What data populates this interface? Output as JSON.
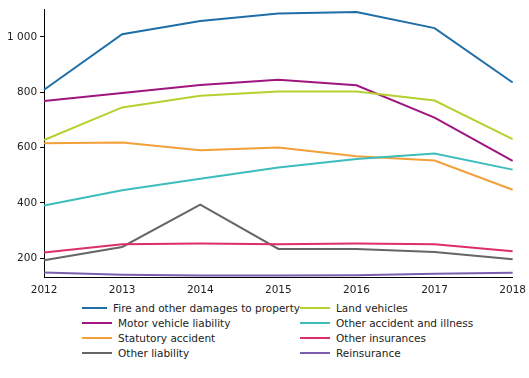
{
  "chart_data": {
    "type": "line",
    "categories": [
      "2012",
      "2013",
      "2014",
      "2015",
      "2016",
      "2017",
      "2018"
    ],
    "series": [
      {
        "name": "Fire and other damages to property",
        "color": "#1f6ea8",
        "values": [
          809,
          1010,
          1058,
          1085,
          1090,
          1032,
          835
        ]
      },
      {
        "name": "Land vehicles",
        "color": "#b5d12f",
        "values": [
          627,
          745,
          787,
          803,
          803,
          770,
          630
        ]
      },
      {
        "name": "Motor vehicle liability",
        "color": "#a0157e",
        "values": [
          768,
          797,
          826,
          845,
          825,
          708,
          552
        ]
      },
      {
        "name": "Other accident and illness",
        "color": "#3dbdbb",
        "values": [
          390,
          445,
          487,
          528,
          558,
          578,
          520
        ]
      },
      {
        "name": "Statutory accident",
        "color": "#f3a03a",
        "values": [
          615,
          618,
          590,
          600,
          568,
          553,
          447
        ]
      },
      {
        "name": "Other insurances",
        "color": "#dd2d6a",
        "values": [
          220,
          250,
          253,
          250,
          253,
          250,
          225
        ]
      },
      {
        "name": "Other liability",
        "color": "#666666",
        "values": [
          192,
          240,
          393,
          233,
          233,
          222,
          196
        ]
      },
      {
        "name": "Reinsurance",
        "color": "#7b5eae",
        "values": [
          148,
          140,
          137,
          137,
          138,
          143,
          147
        ]
      }
    ],
    "ylim": [
      130,
      1100
    ],
    "yticks": [
      200,
      400,
      600,
      800,
      {
        "value": 1000,
        "label": "1 000"
      }
    ],
    "grid": false,
    "legend": "bottom"
  }
}
